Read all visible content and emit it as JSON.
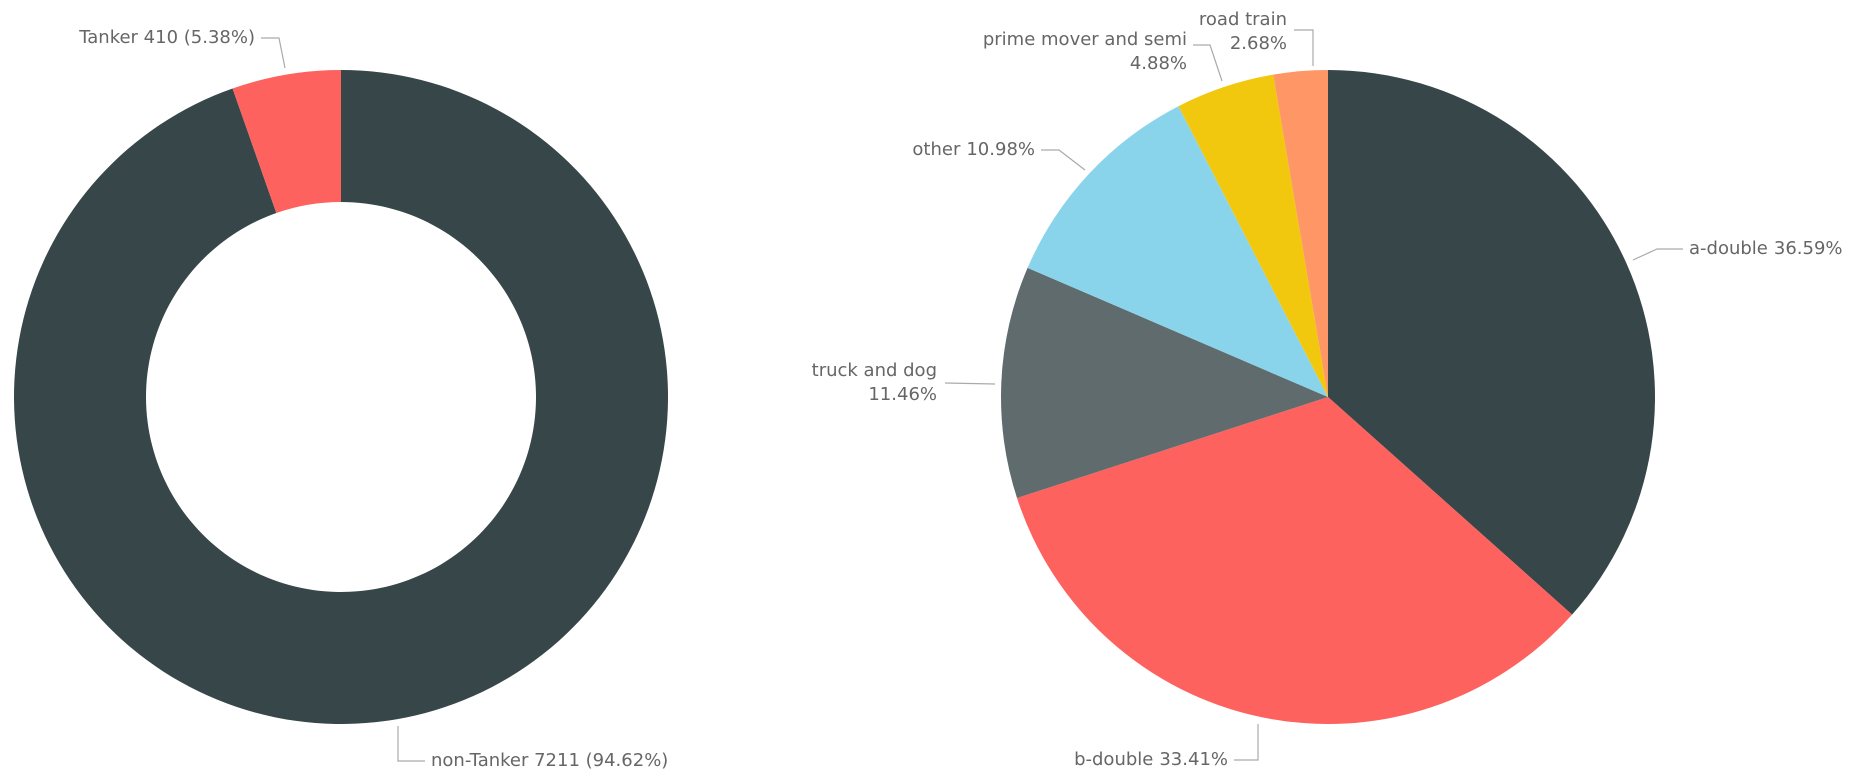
{
  "chart_data": [
    {
      "type": "donut",
      "categories": [
        "non-Tanker",
        "Tanker"
      ],
      "values": [
        7211,
        410
      ],
      "value_labels": [
        "non-Tanker 7211 (94.62%)",
        "Tanker 410 (5.38%)"
      ],
      "colors": [
        "#374649",
        "#fd625e"
      ]
    },
    {
      "type": "pie",
      "categories": [
        "a-double",
        "b-double",
        "truck and dog",
        "other",
        "prime mover and semi",
        "road train"
      ],
      "values": [
        36.59,
        33.41,
        11.46,
        10.98,
        4.88,
        2.68
      ],
      "value_labels": [
        "36.59%",
        "33.41%",
        "11.46%",
        "10.98%",
        "4.88%",
        "2.68%"
      ],
      "colors": [
        "#374649",
        "#fd625e",
        "#5f6b6d",
        "#8ad4eb",
        "#f2c80f",
        "#fe9666"
      ]
    }
  ]
}
